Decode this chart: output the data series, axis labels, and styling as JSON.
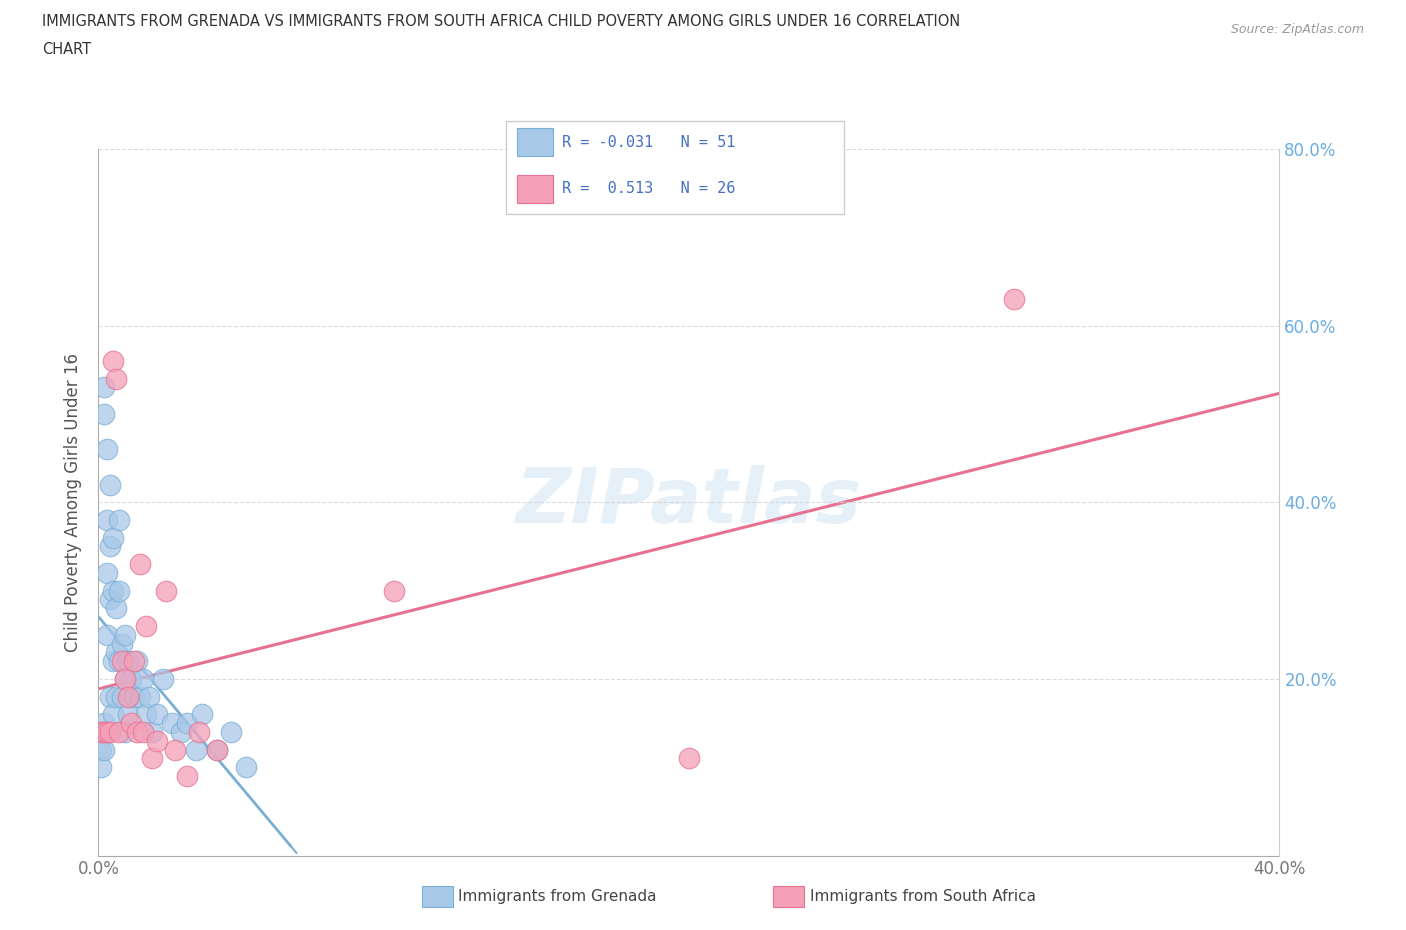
{
  "title_line1": "IMMIGRANTS FROM GRENADA VS IMMIGRANTS FROM SOUTH AFRICA CHILD POVERTY AMONG GIRLS UNDER 16 CORRELATION",
  "title_line2": "CHART",
  "source": "Source: ZipAtlas.com",
  "ylabel": "Child Poverty Among Girls Under 16",
  "xlim": [
    0.0,
    0.4
  ],
  "ylim": [
    0.0,
    0.8
  ],
  "xticks": [
    0.0,
    0.05,
    0.1,
    0.15,
    0.2,
    0.25,
    0.3,
    0.35,
    0.4
  ],
  "yticks": [
    0.0,
    0.2,
    0.4,
    0.6,
    0.8
  ],
  "grenada_color": "#a8c8e8",
  "south_africa_color": "#f4a0b8",
  "grenada_edge_color": "#7aafd4",
  "south_africa_edge_color": "#e87090",
  "grenada_line_color": "#7aafd4",
  "south_africa_line_color": "#e87090",
  "tick_label_color": "#6aade4",
  "background_color": "#ffffff",
  "grid_color": "#d8d8d8",
  "legend_R_grenada": "-0.031",
  "legend_N_grenada": "51",
  "legend_R_south_africa": "0.513",
  "legend_N_south_africa": "26",
  "legend_text_color": "#4472c4",
  "watermark_color": "#b8d4ee",
  "grenada_x": [
    0.001,
    0.001,
    0.001,
    0.002,
    0.002,
    0.002,
    0.002,
    0.003,
    0.003,
    0.003,
    0.003,
    0.003,
    0.004,
    0.004,
    0.004,
    0.004,
    0.005,
    0.005,
    0.005,
    0.005,
    0.006,
    0.006,
    0.006,
    0.007,
    0.007,
    0.007,
    0.008,
    0.008,
    0.009,
    0.009,
    0.009,
    0.01,
    0.01,
    0.011,
    0.012,
    0.013,
    0.014,
    0.015,
    0.016,
    0.017,
    0.018,
    0.02,
    0.022,
    0.025,
    0.028,
    0.03,
    0.033,
    0.035,
    0.04,
    0.045,
    0.05
  ],
  "grenada_y": [
    0.14,
    0.12,
    0.1,
    0.53,
    0.5,
    0.15,
    0.12,
    0.46,
    0.38,
    0.32,
    0.25,
    0.14,
    0.42,
    0.35,
    0.29,
    0.18,
    0.36,
    0.3,
    0.22,
    0.16,
    0.28,
    0.23,
    0.18,
    0.38,
    0.3,
    0.22,
    0.24,
    0.18,
    0.25,
    0.2,
    0.14,
    0.22,
    0.16,
    0.2,
    0.18,
    0.22,
    0.18,
    0.2,
    0.16,
    0.18,
    0.14,
    0.16,
    0.2,
    0.15,
    0.14,
    0.15,
    0.12,
    0.16,
    0.12,
    0.14,
    0.1
  ],
  "south_africa_x": [
    0.001,
    0.002,
    0.003,
    0.004,
    0.005,
    0.006,
    0.007,
    0.008,
    0.009,
    0.01,
    0.011,
    0.012,
    0.013,
    0.014,
    0.015,
    0.016,
    0.018,
    0.02,
    0.023,
    0.026,
    0.03,
    0.034,
    0.04,
    0.1,
    0.2,
    0.31
  ],
  "south_africa_y": [
    0.14,
    0.14,
    0.14,
    0.14,
    0.56,
    0.54,
    0.14,
    0.22,
    0.2,
    0.18,
    0.15,
    0.22,
    0.14,
    0.33,
    0.14,
    0.26,
    0.11,
    0.13,
    0.3,
    0.12,
    0.09,
    0.14,
    0.12,
    0.3,
    0.11,
    0.63
  ]
}
